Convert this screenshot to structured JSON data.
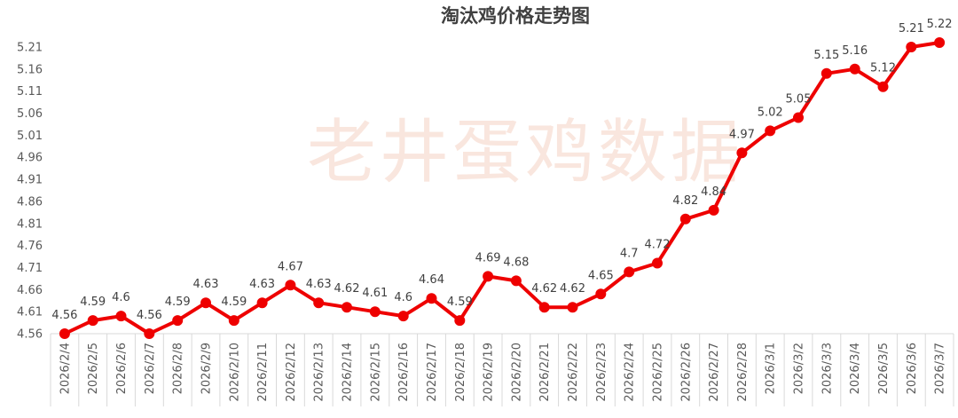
{
  "watermark": "老井蛋鸡数据",
  "colors": {
    "line": "#EE0000",
    "marker": "#EE0000",
    "data_label": "#404040",
    "axis_text": "#595959",
    "title": "#404040",
    "watermark": "#F9E6DE",
    "axis_line": "#D9D9D9"
  },
  "chart_data": {
    "type": "line",
    "title": "淘汰鸡价格走势图",
    "xlabel": "",
    "ylabel": "",
    "categories": [
      "2026/2/4",
      "2026/2/5",
      "2026/2/6",
      "2026/2/7",
      "2026/2/8",
      "2026/2/9",
      "2026/2/10",
      "2026/2/11",
      "2026/2/12",
      "2026/2/13",
      "2026/2/14",
      "2026/2/15",
      "2026/2/16",
      "2026/2/17",
      "2026/2/18",
      "2026/2/19",
      "2026/2/20",
      "2026/2/21",
      "2026/2/22",
      "2026/2/23",
      "2026/2/24",
      "2026/2/25",
      "2026/2/26",
      "2026/2/27",
      "2026/2/28",
      "2026/3/1",
      "2026/3/2",
      "2026/3/3",
      "2026/3/4",
      "2026/3/5",
      "2026/3/6",
      "2026/3/7"
    ],
    "series": [
      {
        "values": [
          4.56,
          4.59,
          4.6,
          4.56,
          4.59,
          4.63,
          4.59,
          4.63,
          4.67,
          4.63,
          4.62,
          4.61,
          4.6,
          4.64,
          4.59,
          4.69,
          4.68,
          4.62,
          4.62,
          4.65,
          4.7,
          4.72,
          4.82,
          4.84,
          4.97,
          5.02,
          5.05,
          5.15,
          5.16,
          5.12,
          5.21,
          5.22
        ]
      }
    ],
    "show_data_labels": true,
    "yticks": [
      "4.56",
      "4.61",
      "4.66",
      "4.71",
      "4.76",
      "4.81",
      "4.86",
      "4.91",
      "4.96",
      "5.01",
      "5.06",
      "5.11",
      "5.16",
      "5.21"
    ],
    "ylim": [
      4.56,
      5.21
    ],
    "x_label_rotation": "vertical",
    "grid": false,
    "legend": "none"
  }
}
